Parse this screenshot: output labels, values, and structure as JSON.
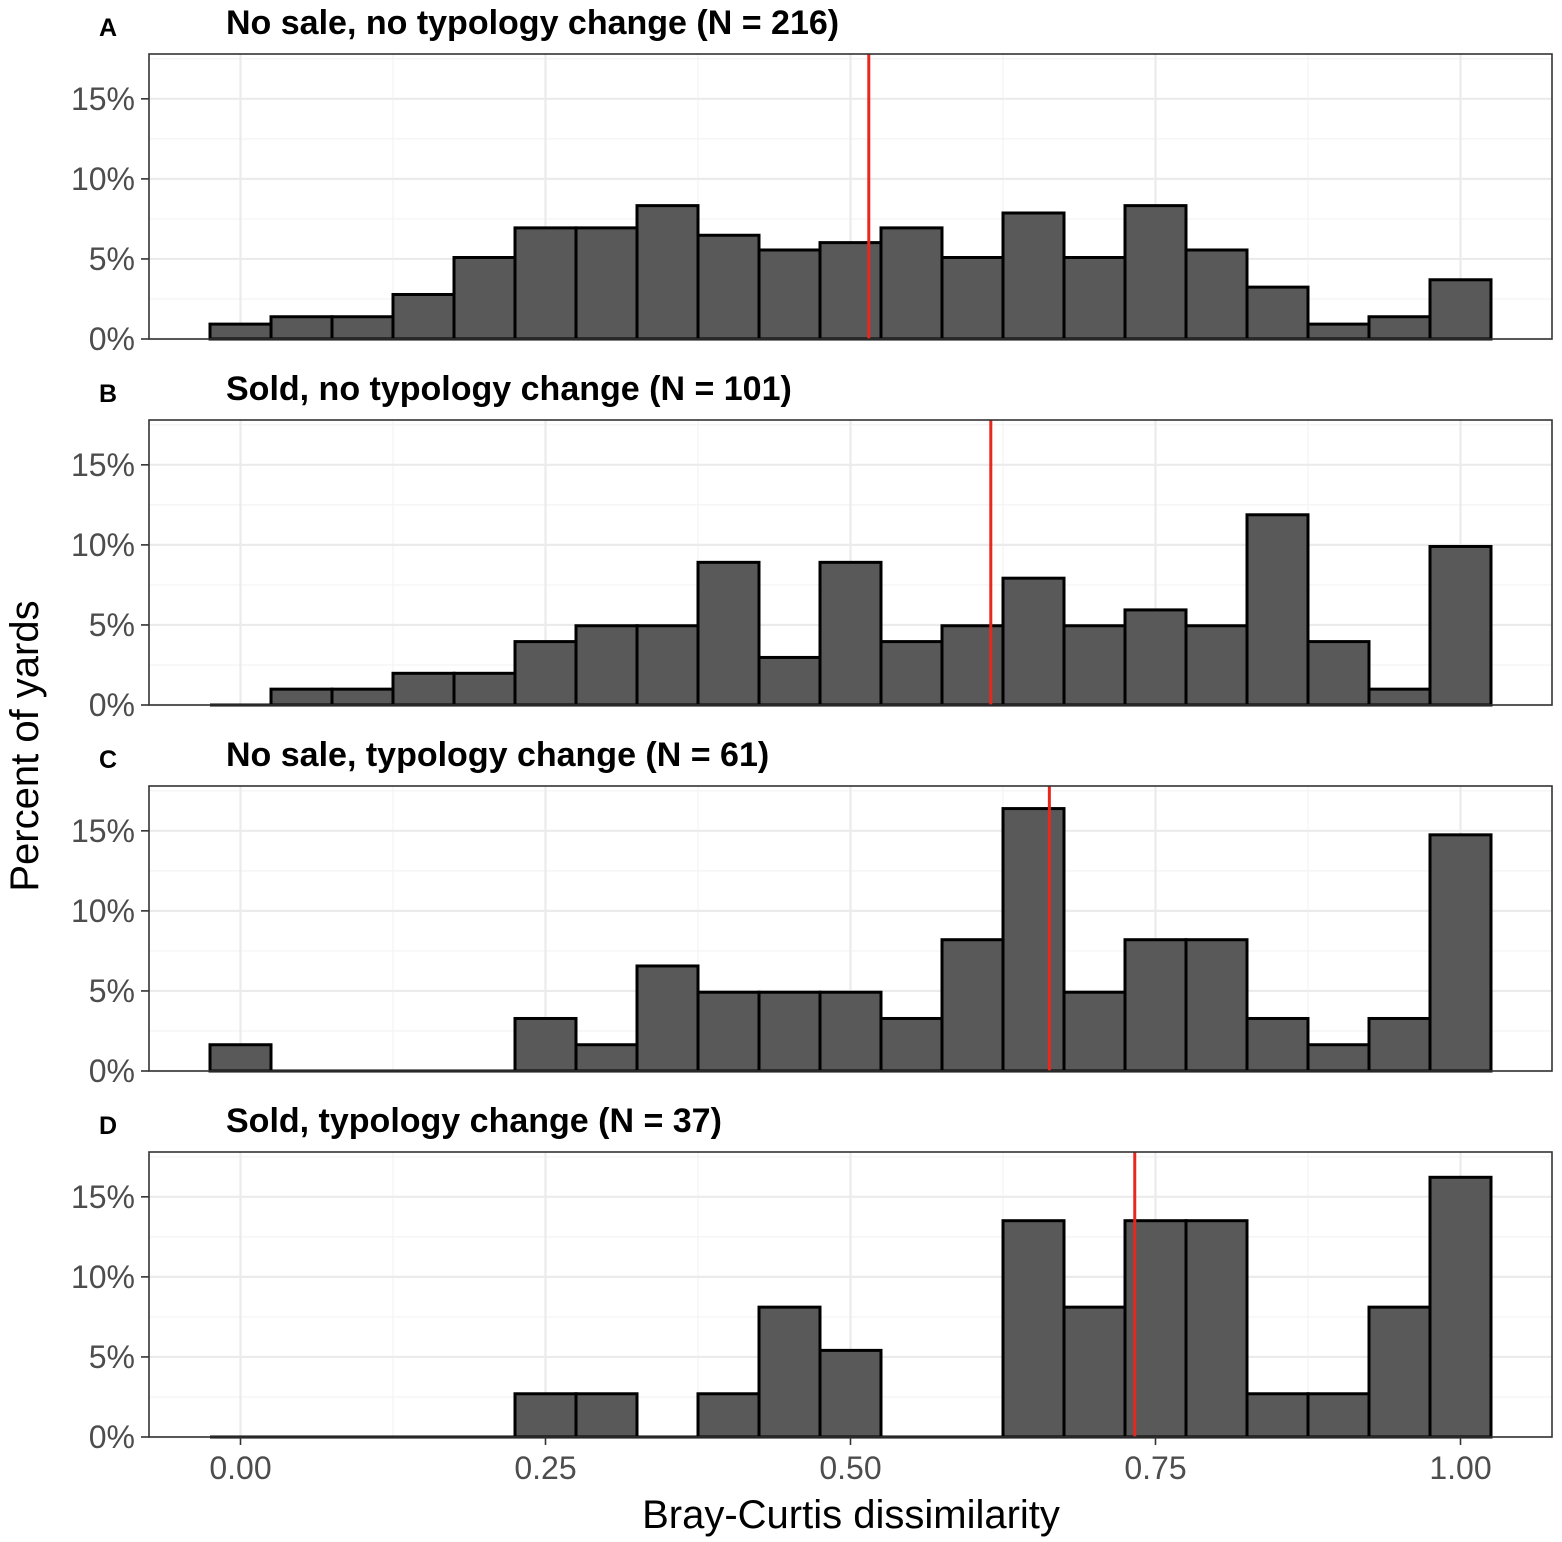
{
  "chart_data": {
    "type": "histogram",
    "xlabel": "Bray-Curtis dissimilarity",
    "ylabel": "Percent of yards",
    "xlim": [
      -0.075,
      1.075
    ],
    "ylim": [
      0,
      17.8
    ],
    "x_ticks": [
      0,
      0.25,
      0.5,
      0.75,
      1
    ],
    "x_tick_labels": [
      "0.00",
      "0.25",
      "0.50",
      "0.75",
      "1.00"
    ],
    "y_ticks": [
      0,
      5,
      10,
      15
    ],
    "y_tick_labels": [
      "0%",
      "5%",
      "10%",
      "15%"
    ],
    "bin_width": 0.05,
    "bin_centers": [
      0,
      0.05,
      0.1,
      0.15,
      0.2,
      0.25,
      0.3,
      0.35,
      0.4,
      0.45,
      0.5,
      0.55,
      0.6,
      0.65,
      0.7,
      0.75,
      0.8,
      0.85,
      0.9,
      0.95,
      1
    ],
    "median_line_color": "#e8281d",
    "bar_color": "#595959",
    "panels": [
      {
        "letter": "A",
        "title": "No sale, no typology change (N = 216)",
        "values": [
          0.93,
          1.39,
          1.39,
          2.78,
          5.09,
          6.94,
          6.94,
          8.33,
          6.48,
          5.56,
          6.02,
          6.94,
          5.09,
          7.87,
          5.09,
          8.33,
          5.56,
          3.24,
          0.93,
          1.39,
          3.7
        ],
        "median": 0.515
      },
      {
        "letter": "B",
        "title": "Sold, no typology change (N = 101)",
        "values": [
          0,
          0.99,
          0.99,
          1.98,
          1.98,
          3.96,
          4.95,
          4.95,
          8.91,
          2.97,
          8.91,
          3.96,
          4.95,
          7.92,
          4.95,
          5.94,
          4.95,
          11.88,
          3.96,
          0.99,
          9.9
        ],
        "median": 0.615
      },
      {
        "letter": "C",
        "title": "No sale, typology change (N = 61)",
        "values": [
          1.64,
          0,
          0,
          0,
          0,
          3.28,
          1.64,
          6.56,
          4.92,
          4.92,
          4.92,
          3.28,
          8.2,
          16.39,
          4.92,
          8.2,
          8.2,
          3.28,
          1.64,
          3.28,
          14.75
        ],
        "median": 0.663
      },
      {
        "letter": "D",
        "title": "Sold, typology change (N = 37)",
        "values": [
          0,
          0,
          0,
          0,
          0,
          2.7,
          2.7,
          0,
          2.7,
          8.11,
          5.41,
          0,
          0,
          13.51,
          8.11,
          13.51,
          13.51,
          2.7,
          2.7,
          8.11,
          16.22
        ],
        "median": 0.733
      }
    ]
  }
}
